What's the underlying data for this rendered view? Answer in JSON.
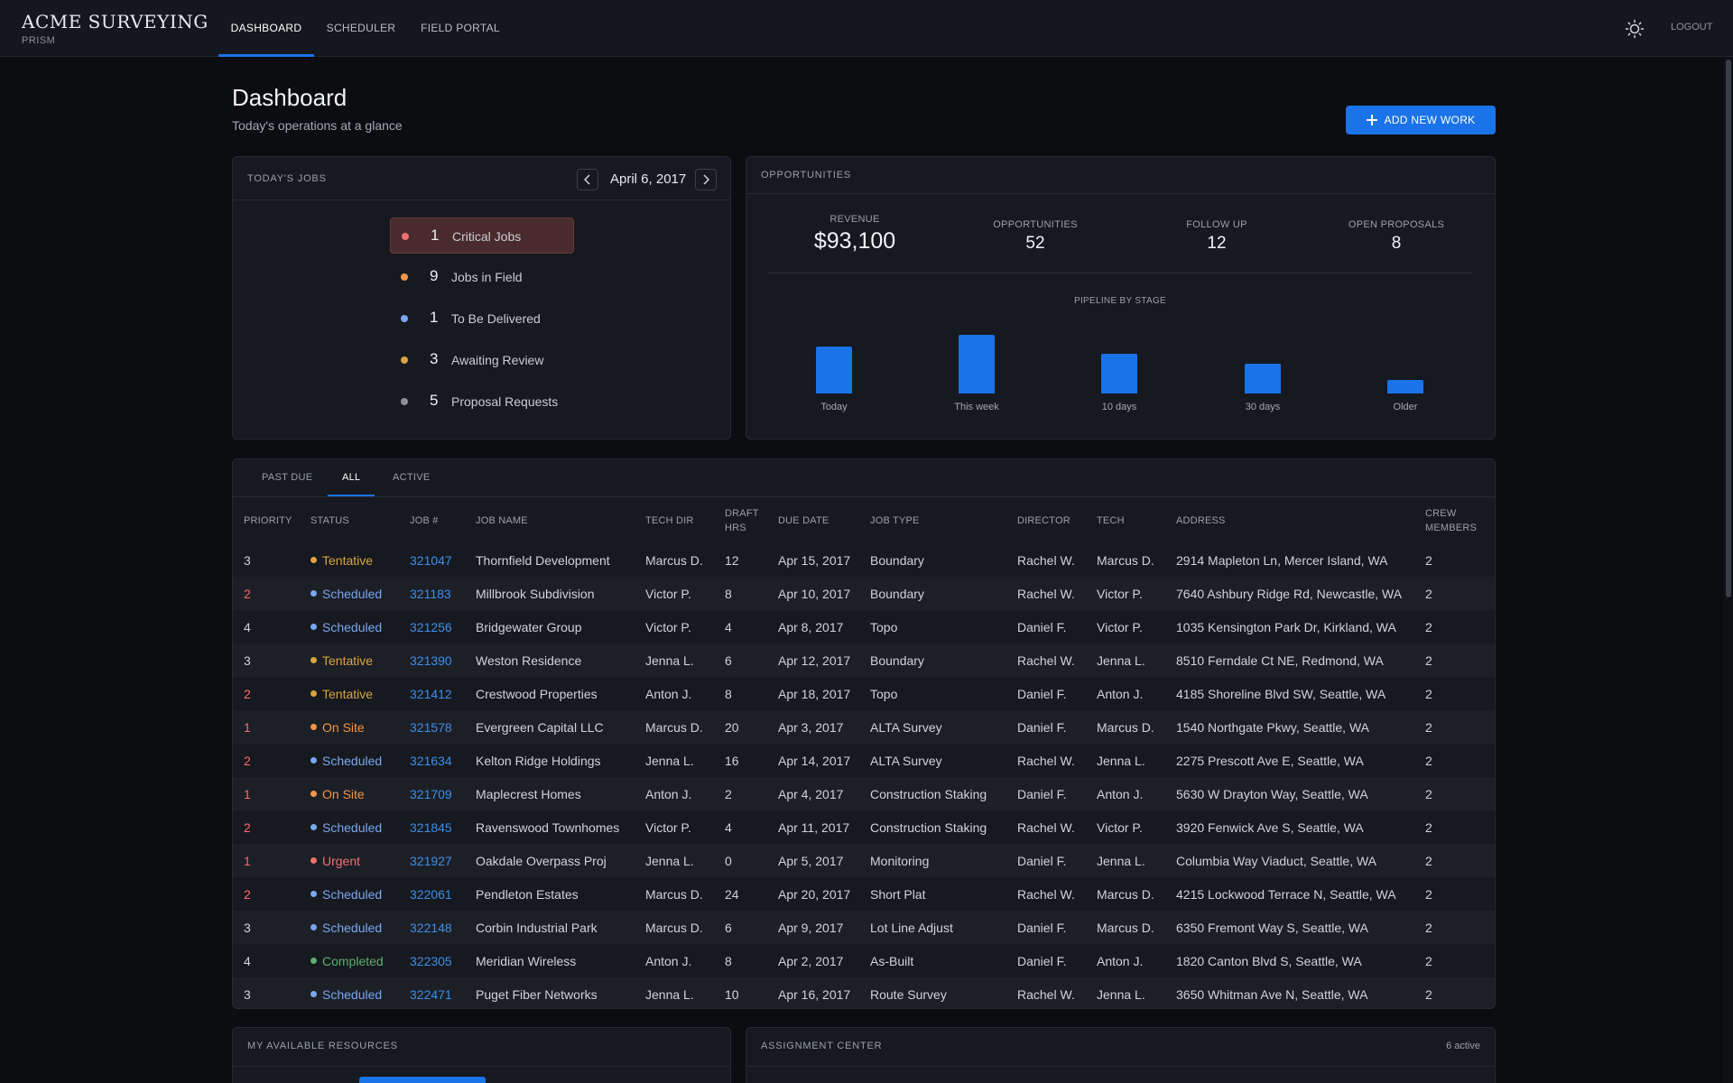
{
  "brand": {
    "name": "ACME SURVEYING",
    "sub": "PRISM"
  },
  "nav": {
    "tabs": [
      "DASHBOARD",
      "SCHEDULER",
      "FIELD PORTAL"
    ],
    "active": "DASHBOARD",
    "logout": "LOGOUT",
    "theme_icon": "sun-icon"
  },
  "page": {
    "title": "Dashboard",
    "subtitle": "Today's operations at a glance",
    "add_button": "ADD NEW WORK"
  },
  "todays_jobs": {
    "title": "TODAY'S JOBS",
    "date": "April 6, 2017",
    "items": [
      {
        "count": "1",
        "label": "Critical Jobs",
        "color": "#f07070"
      },
      {
        "count": "9",
        "label": "Jobs in Field",
        "color": "#f0954a"
      },
      {
        "count": "1",
        "label": "To Be Delivered",
        "color": "#7aa7ee"
      },
      {
        "count": "3",
        "label": "Awaiting Review",
        "color": "#d9a441"
      },
      {
        "count": "5",
        "label": "Proposal Requests",
        "color": "#8a8f98"
      }
    ]
  },
  "opportunities": {
    "title": "OPPORTUNITIES",
    "stats": [
      {
        "label": "REVENUE",
        "value": "$93,100"
      },
      {
        "label": "OPPORTUNITIES",
        "value": "52"
      },
      {
        "label": "FOLLOW UP",
        "value": "12"
      },
      {
        "label": "OPEN PROPOSALS",
        "value": "8"
      }
    ],
    "pipeline_title": "PIPELINE BY STAGE"
  },
  "chart_data": {
    "type": "bar",
    "title": "PIPELINE BY STAGE",
    "categories": [
      "Today",
      "This week",
      "10 days",
      "30 days",
      "Older"
    ],
    "values": [
      52,
      65,
      44,
      33,
      15
    ],
    "color": "#1a73e8"
  },
  "jobs_table": {
    "filters": [
      "PAST DUE",
      "ALL",
      "ACTIVE"
    ],
    "active_filter": "ALL",
    "columns": [
      "PRIORITY",
      "STATUS",
      "JOB #",
      "JOB NAME",
      "TECH DIR",
      "DRAFT HRS",
      "DUE DATE",
      "JOB TYPE",
      "DIRECTOR",
      "TECH",
      "ADDRESS",
      "CREW MEMBERS"
    ],
    "status_colors": {
      "Tentative": "#d9a441",
      "Scheduled": "#7aa7ee",
      "On Site": "#f0954a",
      "Urgent": "#f07070",
      "Completed": "#5fae6e"
    },
    "rows": [
      [
        "3",
        "Tentative",
        "321047",
        "Thornfield Development",
        "Marcus D.",
        "12",
        "Apr 15, 2017",
        "Boundary",
        "Rachel W.",
        "Marcus D.",
        "2914 Mapleton Ln, Mercer Island, WA",
        "2"
      ],
      [
        "2",
        "Scheduled",
        "321183",
        "Millbrook Subdivision",
        "Victor P.",
        "8",
        "Apr 10, 2017",
        "Boundary",
        "Rachel W.",
        "Victor P.",
        "7640 Ashbury Ridge Rd, Newcastle, WA",
        "2"
      ],
      [
        "4",
        "Scheduled",
        "321256",
        "Bridgewater Group",
        "Victor P.",
        "4",
        "Apr 8, 2017",
        "Topo",
        "Daniel F.",
        "Victor P.",
        "1035 Kensington Park Dr, Kirkland, WA",
        "2"
      ],
      [
        "3",
        "Tentative",
        "321390",
        "Weston Residence",
        "Jenna L.",
        "6",
        "Apr 12, 2017",
        "Boundary",
        "Rachel W.",
        "Jenna L.",
        "8510 Ferndale Ct NE, Redmond, WA",
        "2"
      ],
      [
        "2",
        "Tentative",
        "321412",
        "Crestwood Properties",
        "Anton J.",
        "8",
        "Apr 18, 2017",
        "Topo",
        "Daniel F.",
        "Anton J.",
        "4185 Shoreline Blvd SW, Seattle, WA",
        "2"
      ],
      [
        "1",
        "On Site",
        "321578",
        "Evergreen Capital LLC",
        "Marcus D.",
        "20",
        "Apr 3, 2017",
        "ALTA Survey",
        "Daniel F.",
        "Marcus D.",
        "1540 Northgate Pkwy, Seattle, WA",
        "2"
      ],
      [
        "2",
        "Scheduled",
        "321634",
        "Kelton Ridge Holdings",
        "Jenna L.",
        "16",
        "Apr 14, 2017",
        "ALTA Survey",
        "Rachel W.",
        "Jenna L.",
        "2275 Prescott Ave E, Seattle, WA",
        "2"
      ],
      [
        "1",
        "On Site",
        "321709",
        "Maplecrest Homes",
        "Anton J.",
        "2",
        "Apr 4, 2017",
        "Construction Staking",
        "Daniel F.",
        "Anton J.",
        "5630 W Drayton Way, Seattle, WA",
        "2"
      ],
      [
        "2",
        "Scheduled",
        "321845",
        "Ravenswood Townhomes",
        "Victor P.",
        "4",
        "Apr 11, 2017",
        "Construction Staking",
        "Rachel W.",
        "Victor P.",
        "3920 Fenwick Ave S, Seattle, WA",
        "2"
      ],
      [
        "1",
        "Urgent",
        "321927",
        "Oakdale Overpass Proj",
        "Jenna L.",
        "0",
        "Apr 5, 2017",
        "Monitoring",
        "Daniel F.",
        "Jenna L.",
        "Columbia Way Viaduct, Seattle, WA",
        "2"
      ],
      [
        "2",
        "Scheduled",
        "322061",
        "Pendleton Estates",
        "Marcus D.",
        "24",
        "Apr 20, 2017",
        "Short Plat",
        "Rachel W.",
        "Marcus D.",
        "4215 Lockwood Terrace N, Seattle, WA",
        "2"
      ],
      [
        "3",
        "Scheduled",
        "322148",
        "Corbin Industrial Park",
        "Marcus D.",
        "6",
        "Apr 9, 2017",
        "Lot Line Adjust",
        "Daniel F.",
        "Marcus D.",
        "6350 Fremont Way S, Seattle, WA",
        "2"
      ],
      [
        "4",
        "Completed",
        "322305",
        "Meridian Wireless",
        "Anton J.",
        "8",
        "Apr 2, 2017",
        "As-Built",
        "Daniel F.",
        "Anton J.",
        "1820 Canton Blvd S, Seattle, WA",
        "2"
      ],
      [
        "3",
        "Scheduled",
        "322471",
        "Puget Fiber Networks",
        "Jenna L.",
        "10",
        "Apr 16, 2017",
        "Route Survey",
        "Rachel W.",
        "Jenna L.",
        "3650 Whitman Ave N, Seattle, WA",
        "2"
      ]
    ]
  },
  "resources": {
    "title": "MY AVAILABLE RESOURCES"
  },
  "assignment_center": {
    "title": "ASSIGNMENT CENTER",
    "count": "6 active"
  }
}
